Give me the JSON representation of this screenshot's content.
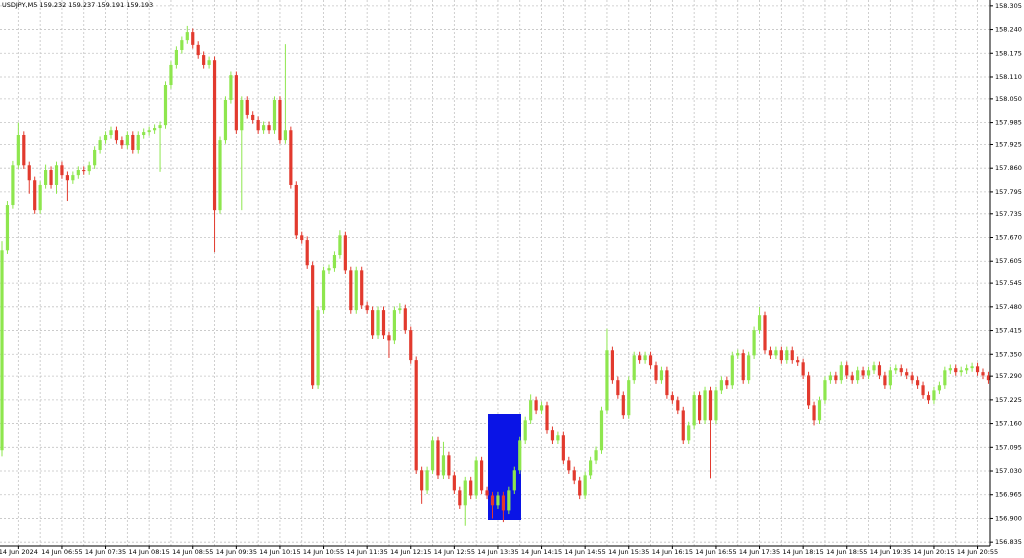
{
  "chart_data": {
    "type": "candlestick",
    "title": "USDJPY,M5  159.232 159.237 159.191 159.193",
    "categories": [
      null,
      null,
      null,
      "14 Jun 2024",
      null,
      null,
      null,
      null,
      null,
      null,
      null,
      "14 Jun 06:55",
      null,
      null,
      null,
      null,
      null,
      null,
      null,
      "14 Jun 07:35",
      null,
      null,
      null,
      null,
      null,
      null,
      null,
      "14 Jun 08:15",
      null,
      null,
      null,
      null,
      null,
      null,
      null,
      "14 Jun 08:55",
      null,
      null,
      null,
      null,
      null,
      null,
      null,
      "14 Jun 09:35",
      null,
      null,
      null,
      null,
      null,
      null,
      null,
      "14 Jun 10:15",
      null,
      null,
      null,
      null,
      null,
      null,
      null,
      "14 Jun 10:55",
      null,
      null,
      null,
      null,
      null,
      null,
      null,
      "14 Jun 11:35",
      null,
      null,
      null,
      null,
      null,
      null,
      null,
      "14 Jun 12:15",
      null,
      null,
      null,
      null,
      null,
      null,
      null,
      "14 Jun 12:55",
      null,
      null,
      null,
      null,
      null,
      null,
      null,
      "14 Jun 13:35",
      null,
      null,
      null,
      null,
      null,
      null,
      null,
      "14 Jun 14:15",
      null,
      null,
      null,
      null,
      null,
      null,
      null,
      "14 Jun 14:55",
      null,
      null,
      null,
      null,
      null,
      null,
      null,
      "14 Jun 15:35",
      null,
      null,
      null,
      null,
      null,
      null,
      null,
      "14 Jun 16:15",
      null,
      null,
      null,
      null,
      null,
      null,
      null,
      "14 Jun 16:55",
      null,
      null,
      null,
      null,
      null,
      null,
      null,
      "14 Jun 17:35",
      null,
      null,
      null,
      null,
      null,
      null,
      null,
      "14 Jun 18:15",
      null,
      null,
      null,
      null,
      null,
      null,
      null,
      "14 Jun 18:55",
      null,
      null,
      null,
      null,
      null,
      null,
      null,
      "14 Jun 19:35",
      null,
      null,
      null,
      null,
      null,
      null,
      null,
      "14 Jun 20:15",
      null,
      null,
      null,
      null,
      null,
      null,
      null,
      "14 Jun 20:55",
      null,
      null
    ],
    "open": [
      157.087,
      157.635,
      157.759,
      157.868,
      157.951,
      157.868,
      157.827,
      157.745,
      157.814,
      157.855,
      157.814,
      157.868,
      157.841,
      157.827,
      157.841,
      157.855,
      157.852,
      157.868,
      157.91,
      157.937,
      157.951,
      157.964,
      157.937,
      157.923,
      157.951,
      157.91,
      157.951,
      157.959,
      157.964,
      157.97,
      157.978,
      158.088,
      158.143,
      158.184,
      158.211,
      158.233,
      158.198,
      158.17,
      158.143,
      158.156,
      157.745,
      157.937,
      158.047,
      158.115,
      157.964,
      158.047,
      158.006,
      157.992,
      157.964,
      157.978,
      157.964,
      158.047,
      157.937,
      157.964,
      157.814,
      157.676,
      157.663,
      157.594,
      157.265,
      157.471,
      157.58,
      157.586,
      157.622,
      157.676,
      157.58,
      157.471,
      157.58,
      157.484,
      157.471,
      157.402,
      157.471,
      157.402,
      157.388,
      157.471,
      157.476,
      157.416,
      157.334,
      157.032,
      156.977,
      157.032,
      157.114,
      157.018,
      157.073,
      157.018,
      156.977,
      156.936,
      157.004,
      156.963,
      157.059,
      156.977,
      156.963,
      156.936,
      156.963,
      156.922,
      156.977,
      157.032,
      157.114,
      157.169,
      157.224,
      157.196,
      157.21,
      157.142,
      157.114,
      157.128,
      157.059,
      157.032,
      157.004,
      156.963,
      157.018,
      157.059,
      157.087,
      157.196,
      157.361,
      157.279,
      157.238,
      157.183,
      157.279,
      157.347,
      157.334,
      157.347,
      157.32,
      157.279,
      157.306,
      157.238,
      157.224,
      157.196,
      157.114,
      157.155,
      157.238,
      157.169,
      157.251,
      157.169,
      157.251,
      157.279,
      157.265,
      157.347,
      157.353,
      157.279,
      157.347,
      157.416,
      157.457,
      157.361,
      157.347,
      157.361,
      157.334,
      157.361,
      157.334,
      157.328,
      157.292,
      157.21,
      157.169,
      157.224,
      157.279,
      157.292,
      157.279,
      157.32,
      157.292,
      157.279,
      157.306,
      157.292,
      157.306,
      157.32,
      157.292,
      157.265,
      157.306,
      157.312,
      157.301,
      157.292,
      157.279,
      157.265,
      157.238,
      157.224,
      157.251,
      157.265,
      157.306,
      157.312,
      157.301,
      157.306,
      157.312,
      157.317,
      157.301,
      157.292
    ],
    "high": [
      157.66,
      157.77,
      157.88,
      157.985,
      157.961,
      157.878,
      157.837,
      157.824,
      157.87,
      157.865,
      157.878,
      157.878,
      157.851,
      157.851,
      157.865,
      157.865,
      157.878,
      157.92,
      157.947,
      157.961,
      157.974,
      157.974,
      157.947,
      157.961,
      157.961,
      157.961,
      157.969,
      157.974,
      157.98,
      157.988,
      158.098,
      158.153,
      158.194,
      158.221,
      158.25,
      158.243,
      158.208,
      158.18,
      158.166,
      158.166,
      157.947,
      158.057,
      158.125,
      158.125,
      158.057,
      158.057,
      158.016,
      158.002,
      157.988,
      157.988,
      158.057,
      158.057,
      158.2,
      157.974,
      157.824,
      157.686,
      157.673,
      157.604,
      157.481,
      157.59,
      157.596,
      157.632,
      157.69,
      157.686,
      157.59,
      157.59,
      157.59,
      157.494,
      157.481,
      157.481,
      157.481,
      157.412,
      157.481,
      157.49,
      157.486,
      157.426,
      157.344,
      157.042,
      157.042,
      157.124,
      157.124,
      157.11,
      157.083,
      157.028,
      156.987,
      157.014,
      157.014,
      157.069,
      157.069,
      156.987,
      156.973,
      156.973,
      156.973,
      156.987,
      157.042,
      157.124,
      157.179,
      157.24,
      157.234,
      157.22,
      157.22,
      157.152,
      157.138,
      157.138,
      157.069,
      157.042,
      157.014,
      157.028,
      157.069,
      157.097,
      157.206,
      157.42,
      157.371,
      157.289,
      157.248,
      157.289,
      157.357,
      157.357,
      157.357,
      157.357,
      157.33,
      157.316,
      157.316,
      157.248,
      157.234,
      157.206,
      157.165,
      157.248,
      157.248,
      157.261,
      157.261,
      157.261,
      157.289,
      157.289,
      157.357,
      157.363,
      157.363,
      157.357,
      157.426,
      157.48,
      157.467,
      157.371,
      157.371,
      157.371,
      157.371,
      157.371,
      157.344,
      157.338,
      157.302,
      157.22,
      157.234,
      157.289,
      157.302,
      157.302,
      157.33,
      157.33,
      157.302,
      157.316,
      157.316,
      157.316,
      157.33,
      157.33,
      157.302,
      157.316,
      157.322,
      157.322,
      157.311,
      157.302,
      157.289,
      157.275,
      157.248,
      157.261,
      157.275,
      157.316,
      157.322,
      157.322,
      157.316,
      157.322,
      157.327,
      157.327,
      157.311,
      157.302
    ],
    "low": [
      157.07,
      157.625,
      157.749,
      157.858,
      157.858,
      157.79,
      157.735,
      157.735,
      157.804,
      157.804,
      157.79,
      157.831,
      157.77,
      157.817,
      157.831,
      157.842,
      157.842,
      157.858,
      157.9,
      157.927,
      157.941,
      157.927,
      157.913,
      157.913,
      157.9,
      157.9,
      157.941,
      157.949,
      157.954,
      157.85,
      157.968,
      158.078,
      158.133,
      158.174,
      158.201,
      158.188,
      158.16,
      158.133,
      158.133,
      157.63,
      157.735,
      157.927,
      158.037,
      157.954,
      157.745,
      157.996,
      157.982,
      157.954,
      157.954,
      157.954,
      157.954,
      157.927,
      157.927,
      157.804,
      157.666,
      157.653,
      157.584,
      157.255,
      157.255,
      157.461,
      157.57,
      157.576,
      157.612,
      157.57,
      157.461,
      157.461,
      157.474,
      157.461,
      157.392,
      157.392,
      157.392,
      157.34,
      157.378,
      157.461,
      157.406,
      157.324,
      157.022,
      156.94,
      156.967,
      157.022,
      157.008,
      157.008,
      157.008,
      156.967,
      156.926,
      156.88,
      156.953,
      156.953,
      156.967,
      156.953,
      156.9,
      156.926,
      156.89,
      156.912,
      156.967,
      157.022,
      157.104,
      157.159,
      157.186,
      157.186,
      157.132,
      157.104,
      157.104,
      157.049,
      157.022,
      156.994,
      156.953,
      156.953,
      157.008,
      157.049,
      157.077,
      157.186,
      157.269,
      157.228,
      157.173,
      157.173,
      157.269,
      157.324,
      157.324,
      157.31,
      157.269,
      157.269,
      157.228,
      157.214,
      157.186,
      157.104,
      157.104,
      157.145,
      157.159,
      157.159,
      157.01,
      157.159,
      157.241,
      157.255,
      157.255,
      157.337,
      157.269,
      157.269,
      157.337,
      157.406,
      157.351,
      157.337,
      157.337,
      157.324,
      157.324,
      157.324,
      157.318,
      157.282,
      157.2,
      157.155,
      157.159,
      157.214,
      157.269,
      157.269,
      157.269,
      157.282,
      157.269,
      157.269,
      157.282,
      157.282,
      157.296,
      157.282,
      157.255,
      157.255,
      157.296,
      157.291,
      157.282,
      157.269,
      157.255,
      157.228,
      157.214,
      157.214,
      157.241,
      157.255,
      157.296,
      157.291,
      157.291,
      157.296,
      157.302,
      157.291,
      157.282,
      157.269
    ],
    "close": [
      157.635,
      157.759,
      157.868,
      157.951,
      157.868,
      157.827,
      157.745,
      157.814,
      157.855,
      157.814,
      157.868,
      157.841,
      157.827,
      157.841,
      157.855,
      157.852,
      157.868,
      157.91,
      157.937,
      157.951,
      157.964,
      157.937,
      157.923,
      157.951,
      157.91,
      157.951,
      157.959,
      157.964,
      157.97,
      157.978,
      158.088,
      158.143,
      158.184,
      158.211,
      158.233,
      158.198,
      158.17,
      158.143,
      158.156,
      157.745,
      157.937,
      158.047,
      158.115,
      157.964,
      158.047,
      158.006,
      157.992,
      157.964,
      157.978,
      157.964,
      158.047,
      157.937,
      157.964,
      157.814,
      157.676,
      157.663,
      157.594,
      157.265,
      157.471,
      157.58,
      157.586,
      157.622,
      157.676,
      157.58,
      157.471,
      157.58,
      157.484,
      157.471,
      157.402,
      157.471,
      157.402,
      157.388,
      157.471,
      157.476,
      157.416,
      157.334,
      157.032,
      156.977,
      157.032,
      157.114,
      157.018,
      157.073,
      157.018,
      156.977,
      156.936,
      157.004,
      156.963,
      157.059,
      156.977,
      156.963,
      156.936,
      156.963,
      156.922,
      156.977,
      157.032,
      157.114,
      157.169,
      157.224,
      157.196,
      157.21,
      157.142,
      157.114,
      157.128,
      157.059,
      157.032,
      157.004,
      156.963,
      157.018,
      157.059,
      157.087,
      157.196,
      157.361,
      157.279,
      157.238,
      157.183,
      157.279,
      157.347,
      157.334,
      157.347,
      157.32,
      157.279,
      157.306,
      157.238,
      157.224,
      157.196,
      157.114,
      157.155,
      157.238,
      157.169,
      157.251,
      157.169,
      157.251,
      157.279,
      157.265,
      157.347,
      157.353,
      157.279,
      157.347,
      157.416,
      157.457,
      157.361,
      157.347,
      157.361,
      157.334,
      157.361,
      157.334,
      157.328,
      157.292,
      157.21,
      157.169,
      157.224,
      157.279,
      157.292,
      157.279,
      157.32,
      157.292,
      157.279,
      157.306,
      157.292,
      157.306,
      157.32,
      157.292,
      157.265,
      157.306,
      157.312,
      157.301,
      157.292,
      157.279,
      157.265,
      157.238,
      157.224,
      157.251,
      157.265,
      157.306,
      157.312,
      157.301,
      157.306,
      157.312,
      157.317,
      157.301,
      157.292,
      157.279
    ],
    "up_color": "#8ee64e",
    "down_color": "#e23a2e",
    "ylim": [
      156.819,
      158.321
    ],
    "yticks": [
      158.305,
      {
        "value": 158.24,
        "label": "158.240"
      },
      158.175,
      {
        "value": 158.11,
        "label": "158.110"
      },
      {
        "value": 158.05,
        "label": "158.050"
      },
      157.985,
      157.925,
      {
        "value": 157.86,
        "label": "157.860"
      },
      157.795,
      157.735,
      {
        "value": 157.67,
        "label": "157.670"
      },
      157.605,
      157.545,
      {
        "value": 157.48,
        "label": "157.480"
      },
      157.415,
      {
        "value": 157.35,
        "label": "157.350"
      },
      {
        "value": 157.29,
        "label": "157.290"
      },
      157.225,
      {
        "value": 157.16,
        "label": "157.160"
      },
      157.095,
      {
        "value": 157.03,
        "label": "157.030"
      },
      156.965,
      {
        "value": 156.9,
        "label": "156.900"
      },
      156.835
    ],
    "grid": true
  }
}
